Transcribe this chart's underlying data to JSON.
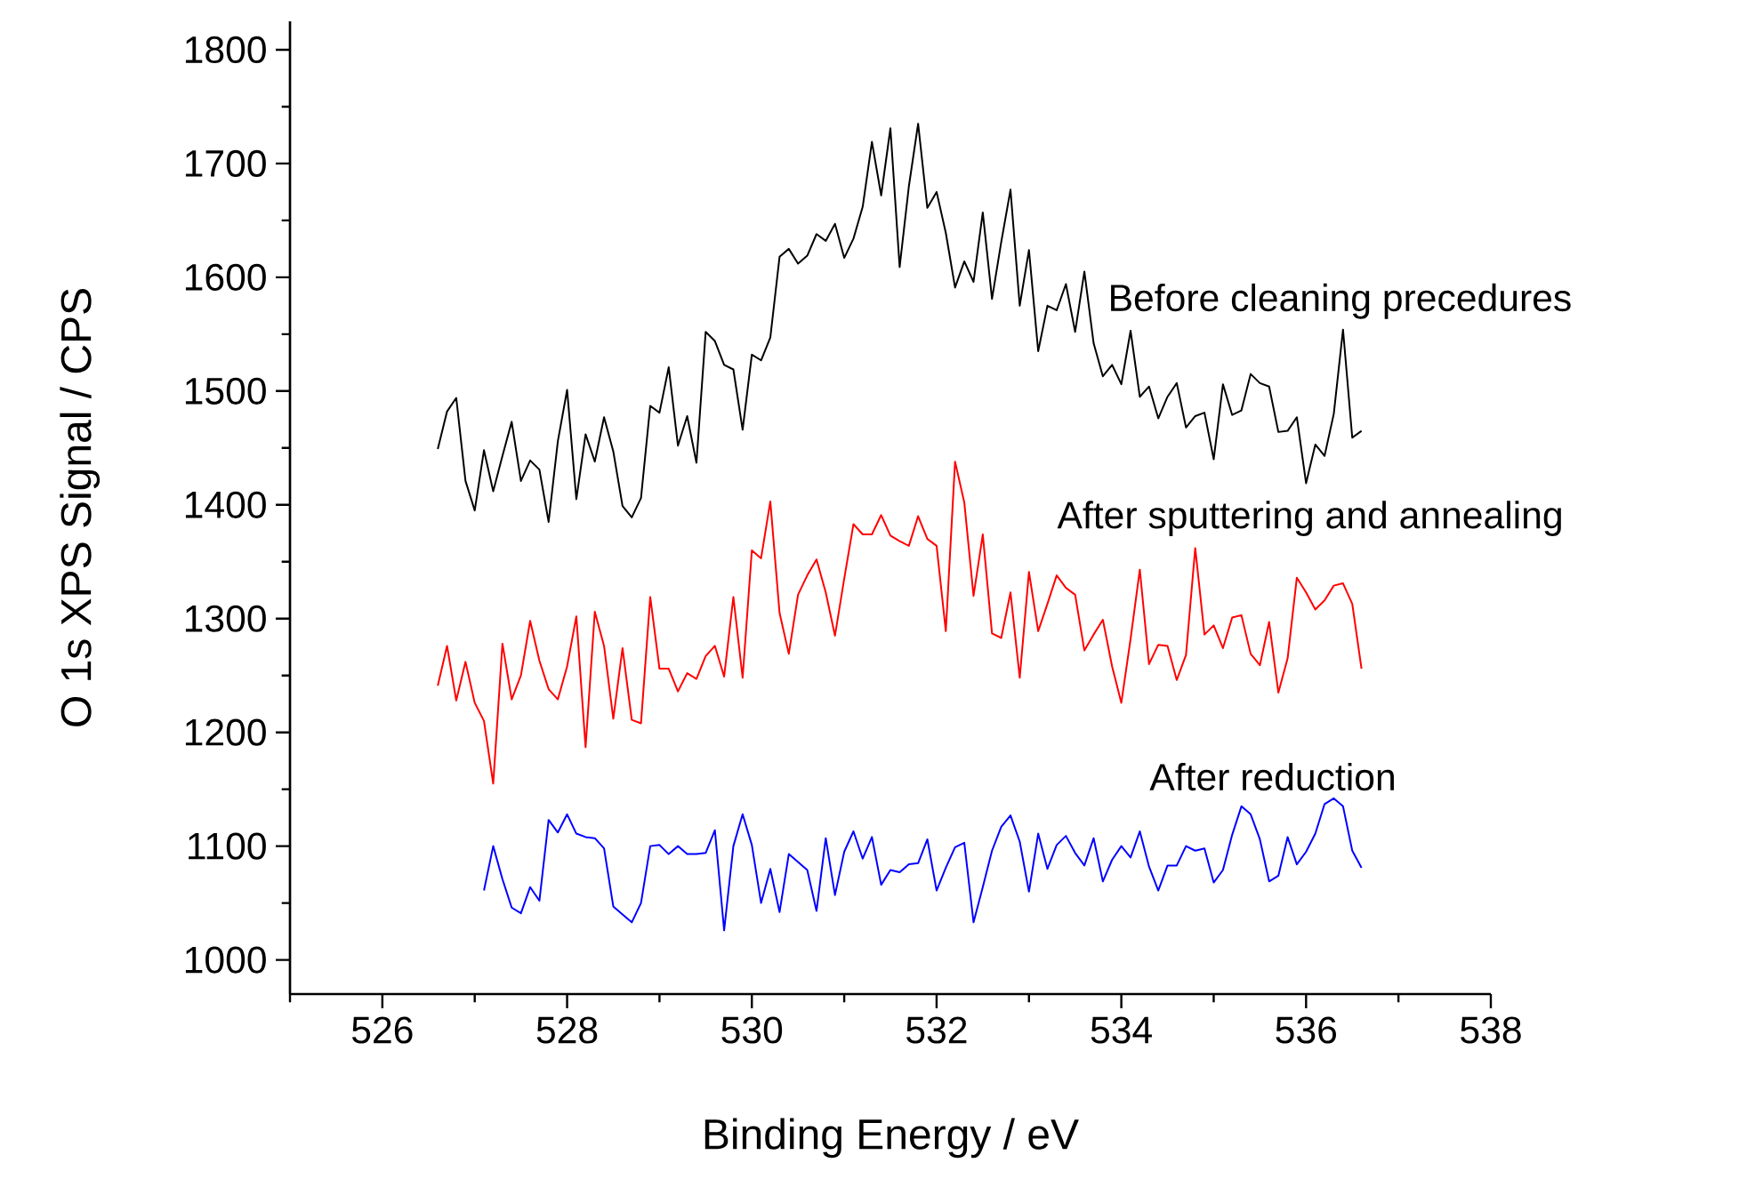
{
  "chart_data": {
    "type": "line",
    "xlabel": "Binding Energy / eV",
    "ylabel": "O 1s XPS Signal / CPS",
    "xlim": [
      525,
      538
    ],
    "ylim": [
      970,
      1825
    ],
    "xticks": [
      {
        "value": 525,
        "label": null
      },
      526,
      {
        "value": 527,
        "label": null
      },
      528,
      {
        "value": 529,
        "label": null
      },
      530,
      {
        "value": 531,
        "label": null
      },
      532,
      {
        "value": 533,
        "label": null
      },
      534,
      {
        "value": 535,
        "label": null
      },
      536,
      {
        "value": 537,
        "label": null
      },
      538
    ],
    "yticks": [
      1000,
      {
        "value": 1050,
        "label": null
      },
      1100,
      {
        "value": 1150,
        "label": null
      },
      1200,
      {
        "value": 1250,
        "label": null
      },
      1300,
      {
        "value": 1350,
        "label": null
      },
      1400,
      {
        "value": 1450,
        "label": null
      },
      1500,
      {
        "value": 1550,
        "label": null
      },
      1600,
      {
        "value": 1650,
        "label": null
      },
      1700,
      {
        "value": 1750,
        "label": null
      },
      1800
    ],
    "grid": false,
    "marker": "none",
    "line_style": "solid",
    "series": [
      {
        "name": "Before cleaning precedures",
        "color": "#000000",
        "x": [
          526.6,
          526.7,
          526.8,
          526.9,
          527.0,
          527.1,
          527.2,
          527.3,
          527.4,
          527.5,
          527.6,
          527.7,
          527.8,
          527.9,
          528.0,
          528.1,
          528.2,
          528.3,
          528.4,
          528.5,
          528.6,
          528.7,
          528.8,
          528.9,
          529.0,
          529.1,
          529.2,
          529.3,
          529.4,
          529.5,
          529.6,
          529.7,
          529.8,
          529.9,
          530.0,
          530.1,
          530.2,
          530.3,
          530.4,
          530.5,
          530.6,
          530.7,
          530.8,
          530.9,
          531.0,
          531.1,
          531.2,
          531.3,
          531.4,
          531.5,
          531.6,
          531.7,
          531.8,
          531.9,
          532.0,
          532.1,
          532.2,
          532.3,
          532.4,
          532.5,
          532.6,
          532.7,
          532.8,
          532.9,
          533.0,
          533.1,
          533.2,
          533.3,
          533.4,
          533.5,
          533.6,
          533.7,
          533.8,
          533.9,
          534.0,
          534.1,
          534.2,
          534.3,
          534.4,
          534.5,
          534.6,
          534.7,
          534.8,
          534.9,
          535.0,
          535.1,
          535.2,
          535.3,
          535.4,
          535.5,
          535.6,
          535.7,
          535.8,
          535.9,
          536.0,
          536.1,
          536.2,
          536.3,
          536.4,
          536.5,
          536.6
        ],
        "values": [
          1449,
          1482,
          1494,
          1421,
          1395,
          1448,
          1412,
          1443,
          1473,
          1421,
          1439,
          1431,
          1385,
          1456,
          1501,
          1405,
          1462,
          1438,
          1477,
          1447,
          1399,
          1389,
          1406,
          1487,
          1481,
          1521,
          1452,
          1478,
          1437,
          1552,
          1544,
          1523,
          1519,
          1466,
          1532,
          1527,
          1547,
          1618,
          1625,
          1612,
          1619,
          1638,
          1632,
          1647,
          1617,
          1634,
          1662,
          1719,
          1672,
          1731,
          1609,
          1680,
          1735,
          1661,
          1675,
          1639,
          1591,
          1614,
          1596,
          1657,
          1581,
          1631,
          1677,
          1575,
          1624,
          1535,
          1575,
          1571,
          1594,
          1552,
          1605,
          1542,
          1513,
          1523,
          1506,
          1553,
          1495,
          1504,
          1476,
          1495,
          1507,
          1468,
          1478,
          1481,
          1440,
          1506,
          1479,
          1483,
          1515,
          1507,
          1504,
          1464,
          1465,
          1477,
          1419,
          1453,
          1443,
          1480,
          1554,
          1459,
          1465
        ]
      },
      {
        "name": "After sputtering and annealing",
        "color": "#ff0000",
        "x": [
          526.6,
          526.7,
          526.8,
          526.9,
          527.0,
          527.1,
          527.2,
          527.3,
          527.4,
          527.5,
          527.6,
          527.7,
          527.8,
          527.9,
          528.0,
          528.1,
          528.2,
          528.3,
          528.4,
          528.5,
          528.6,
          528.7,
          528.8,
          528.9,
          529.0,
          529.1,
          529.2,
          529.3,
          529.4,
          529.5,
          529.6,
          529.7,
          529.8,
          529.9,
          530.0,
          530.1,
          530.2,
          530.3,
          530.4,
          530.5,
          530.6,
          530.7,
          530.8,
          530.9,
          531.0,
          531.1,
          531.2,
          531.3,
          531.4,
          531.5,
          531.6,
          531.7,
          531.8,
          531.9,
          532.0,
          532.1,
          532.2,
          532.3,
          532.4,
          532.5,
          532.6,
          532.7,
          532.8,
          532.9,
          533.0,
          533.1,
          533.2,
          533.3,
          533.4,
          533.5,
          533.6,
          533.7,
          533.8,
          533.9,
          534.0,
          534.1,
          534.2,
          534.3,
          534.4,
          534.5,
          534.6,
          534.7,
          534.8,
          534.9,
          535.0,
          535.1,
          535.2,
          535.3,
          535.4,
          535.5,
          535.6,
          535.7,
          535.8,
          535.9,
          536.0,
          536.1,
          536.2,
          536.3,
          536.4,
          536.5,
          536.6
        ],
        "values": [
          1241,
          1276,
          1228,
          1262,
          1226,
          1210,
          1155,
          1278,
          1229,
          1250,
          1298,
          1263,
          1238,
          1229,
          1258,
          1302,
          1187,
          1306,
          1276,
          1212,
          1274,
          1211,
          1208,
          1319,
          1256,
          1256,
          1236,
          1252,
          1247,
          1267,
          1276,
          1249,
          1319,
          1248,
          1360,
          1353,
          1403,
          1305,
          1269,
          1321,
          1338,
          1352,
          1323,
          1285,
          1335,
          1383,
          1374,
          1374,
          1391,
          1373,
          1368,
          1364,
          1390,
          1370,
          1364,
          1289,
          1438,
          1402,
          1320,
          1374,
          1287,
          1283,
          1323,
          1248,
          1341,
          1289,
          1313,
          1338,
          1327,
          1321,
          1272,
          1286,
          1299,
          1258,
          1226,
          1282,
          1343,
          1260,
          1277,
          1276,
          1246,
          1268,
          1362,
          1286,
          1294,
          1274,
          1301,
          1303,
          1269,
          1259,
          1297,
          1235,
          1265,
          1336,
          1323,
          1308,
          1316,
          1329,
          1331,
          1313,
          1256
        ]
      },
      {
        "name": "After reduction",
        "color": "#0000ff",
        "x": [
          527.1,
          527.2,
          527.3,
          527.4,
          527.5,
          527.6,
          527.7,
          527.8,
          527.9,
          528.0,
          528.1,
          528.2,
          528.3,
          528.4,
          528.5,
          528.6,
          528.7,
          528.8,
          528.9,
          529.0,
          529.1,
          529.2,
          529.3,
          529.4,
          529.5,
          529.6,
          529.7,
          529.8,
          529.9,
          530.0,
          530.1,
          530.2,
          530.3,
          530.4,
          530.5,
          530.6,
          530.7,
          530.8,
          530.9,
          531.0,
          531.1,
          531.2,
          531.3,
          531.4,
          531.5,
          531.6,
          531.7,
          531.8,
          531.9,
          532.0,
          532.1,
          532.2,
          532.3,
          532.4,
          532.5,
          532.6,
          532.7,
          532.8,
          532.9,
          533.0,
          533.1,
          533.2,
          533.3,
          533.4,
          533.5,
          533.6,
          533.7,
          533.8,
          533.9,
          534.0,
          534.1,
          534.2,
          534.3,
          534.4,
          534.5,
          534.6,
          534.7,
          534.8,
          534.9,
          535.0,
          535.1,
          535.2,
          535.3,
          535.4,
          535.5,
          535.6,
          535.7,
          535.8,
          535.9,
          536.0,
          536.1,
          536.2,
          536.3,
          536.4,
          536.5,
          536.6
        ],
        "values": [
          1061,
          1100,
          1071,
          1046,
          1041,
          1064,
          1052,
          1123,
          1112,
          1128,
          1111,
          1108,
          1107,
          1098,
          1047,
          1040,
          1033,
          1050,
          1100,
          1101,
          1093,
          1100,
          1093,
          1093,
          1094,
          1114,
          1026,
          1100,
          1128,
          1101,
          1050,
          1080,
          1042,
          1093,
          1086,
          1079,
          1043,
          1107,
          1057,
          1095,
          1113,
          1089,
          1108,
          1066,
          1079,
          1077,
          1084,
          1085,
          1106,
          1061,
          1081,
          1099,
          1103,
          1033,
          1064,
          1096,
          1117,
          1127,
          1104,
          1060,
          1111,
          1080,
          1101,
          1109,
          1094,
          1083,
          1107,
          1069,
          1088,
          1100,
          1090,
          1113,
          1082,
          1061,
          1083,
          1083,
          1100,
          1096,
          1098,
          1068,
          1079,
          1110,
          1135,
          1128,
          1106,
          1069,
          1074,
          1108,
          1084,
          1095,
          1111,
          1137,
          1142,
          1135,
          1096,
          1081
        ]
      }
    ]
  }
}
